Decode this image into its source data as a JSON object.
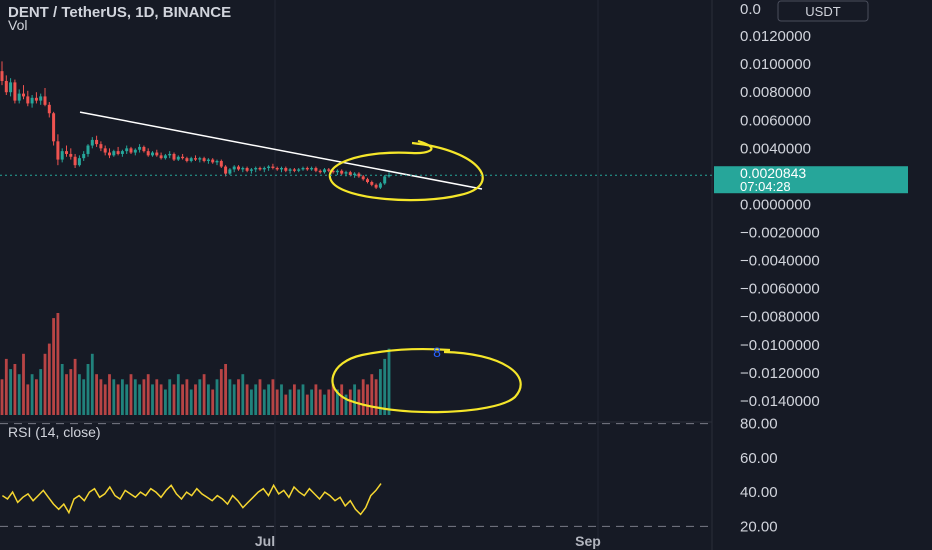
{
  "header": {
    "title": "DENT / TetherUS, 1D, BINANCE",
    "vol_label": "Vol",
    "currency_button": "USDT"
  },
  "rsi": {
    "label": "RSI (14, close)"
  },
  "last_price": {
    "value": "0.0020843",
    "countdown": "07:04:28"
  },
  "colors": {
    "background": "#161a25",
    "up": "#26a69a",
    "down": "#ef5350",
    "trendline": "#ffffff",
    "annotation": "#f5e62a",
    "rsi_line": "#f5d631",
    "price_badge": "#26a69a"
  },
  "annotation_marker": "8",
  "chart_data": {
    "type": "candlestick",
    "price_axis": {
      "ylim": [
        -0.0155,
        0.014
      ],
      "ticks": [
        "0.0120000",
        "0.0100000",
        "0.0080000",
        "0.0060000",
        "0.0040000",
        "0.0000000",
        "−0.0020000",
        "−0.0040000",
        "−0.0060000",
        "−0.0080000",
        "−0.0100000",
        "−0.0120000",
        "−0.0140000"
      ]
    },
    "rsi_axis": {
      "ylim": [
        15,
        85
      ],
      "ticks": [
        "80.00",
        "60.00",
        "40.00",
        "20.00"
      ],
      "bands": [
        80,
        20
      ]
    },
    "x_ticks": [
      {
        "label": "Jul",
        "index": 75
      },
      {
        "label": "Sep",
        "index": 170
      }
    ],
    "candles": [
      [
        0.0095,
        0.0102,
        0.0085,
        0.0088
      ],
      [
        0.0088,
        0.0092,
        0.0078,
        0.008
      ],
      [
        0.008,
        0.009,
        0.0077,
        0.0087
      ],
      [
        0.0087,
        0.0089,
        0.0072,
        0.0074
      ],
      [
        0.0074,
        0.0082,
        0.0072,
        0.0079
      ],
      [
        0.0079,
        0.0085,
        0.0075,
        0.0077
      ],
      [
        0.0077,
        0.0081,
        0.007,
        0.0072
      ],
      [
        0.0072,
        0.0078,
        0.0069,
        0.0076
      ],
      [
        0.0076,
        0.008,
        0.0072,
        0.0074
      ],
      [
        0.0074,
        0.0079,
        0.0071,
        0.0077
      ],
      [
        0.0077,
        0.0083,
        0.007,
        0.0071
      ],
      [
        0.0071,
        0.0073,
        0.0062,
        0.0065
      ],
      [
        0.0065,
        0.0066,
        0.0042,
        0.0045
      ],
      [
        0.0045,
        0.005,
        0.0028,
        0.0032
      ],
      [
        0.0032,
        0.004,
        0.003,
        0.0038
      ],
      [
        0.0038,
        0.0042,
        0.0034,
        0.0036
      ],
      [
        0.0036,
        0.004,
        0.0032,
        0.0034
      ],
      [
        0.0034,
        0.0036,
        0.0026,
        0.0028
      ],
      [
        0.0028,
        0.0035,
        0.0027,
        0.0033
      ],
      [
        0.0033,
        0.0038,
        0.0031,
        0.0036
      ],
      [
        0.0036,
        0.0043,
        0.0034,
        0.0042
      ],
      [
        0.0042,
        0.0048,
        0.004,
        0.0046
      ],
      [
        0.0046,
        0.0049,
        0.0041,
        0.0043
      ],
      [
        0.0043,
        0.0045,
        0.0038,
        0.004
      ],
      [
        0.004,
        0.0042,
        0.0035,
        0.0037
      ],
      [
        0.0037,
        0.004,
        0.0033,
        0.0035
      ],
      [
        0.0035,
        0.0039,
        0.0034,
        0.0038
      ],
      [
        0.0038,
        0.0041,
        0.0035,
        0.0036
      ],
      [
        0.0036,
        0.0039,
        0.0034,
        0.0038
      ],
      [
        0.0038,
        0.0042,
        0.0036,
        0.004
      ],
      [
        0.004,
        0.0041,
        0.0036,
        0.0037
      ],
      [
        0.0037,
        0.004,
        0.0035,
        0.0039
      ],
      [
        0.0039,
        0.0043,
        0.0037,
        0.0041
      ],
      [
        0.0041,
        0.0042,
        0.0037,
        0.0038
      ],
      [
        0.0038,
        0.004,
        0.0034,
        0.0035
      ],
      [
        0.0035,
        0.0038,
        0.0034,
        0.0037
      ],
      [
        0.0037,
        0.0039,
        0.0034,
        0.0035
      ],
      [
        0.0035,
        0.0037,
        0.0032,
        0.0033
      ],
      [
        0.0033,
        0.0036,
        0.0032,
        0.0035
      ],
      [
        0.0035,
        0.0038,
        0.0033,
        0.0036
      ],
      [
        0.0036,
        0.0037,
        0.0031,
        0.0032
      ],
      [
        0.0032,
        0.0035,
        0.0031,
        0.0034
      ],
      [
        0.0034,
        0.0036,
        0.0032,
        0.0033
      ],
      [
        0.0033,
        0.0034,
        0.003,
        0.0031
      ],
      [
        0.0031,
        0.0034,
        0.003,
        0.0033
      ],
      [
        0.0033,
        0.0035,
        0.0031,
        0.0032
      ],
      [
        0.0032,
        0.0034,
        0.003,
        0.0033
      ],
      [
        0.0033,
        0.0034,
        0.003,
        0.0031
      ],
      [
        0.0031,
        0.0033,
        0.0029,
        0.0032
      ],
      [
        0.0032,
        0.0033,
        0.0029,
        0.003
      ],
      [
        0.003,
        0.0032,
        0.0028,
        0.0031
      ],
      [
        0.0031,
        0.0032,
        0.0026,
        0.0027
      ],
      [
        0.0027,
        0.0028,
        0.002,
        0.0022
      ],
      [
        0.0022,
        0.0026,
        0.0021,
        0.0025
      ],
      [
        0.0025,
        0.0028,
        0.0023,
        0.0027
      ],
      [
        0.0027,
        0.0028,
        0.0024,
        0.0025
      ],
      [
        0.0025,
        0.0027,
        0.0023,
        0.0026
      ],
      [
        0.0026,
        0.0027,
        0.0023,
        0.0024
      ],
      [
        0.0024,
        0.0026,
        0.0022,
        0.0025
      ],
      [
        0.0025,
        0.0027,
        0.0023,
        0.0026
      ],
      [
        0.0026,
        0.0027,
        0.0024,
        0.0025
      ],
      [
        0.0025,
        0.0027,
        0.0023,
        0.0026
      ],
      [
        0.0026,
        0.0028,
        0.0024,
        0.0027
      ],
      [
        0.0027,
        0.0029,
        0.0025,
        0.0026
      ],
      [
        0.0026,
        0.0027,
        0.0024,
        0.0025
      ],
      [
        0.0025,
        0.0027,
        0.0023,
        0.0026
      ],
      [
        0.0026,
        0.0027,
        0.0023,
        0.0024
      ],
      [
        0.0024,
        0.0026,
        0.0022,
        0.0025
      ],
      [
        0.0025,
        0.0026,
        0.0023,
        0.0024
      ],
      [
        0.0024,
        0.0026,
        0.0023,
        0.0025
      ],
      [
        0.0025,
        0.0027,
        0.0024,
        0.0026
      ],
      [
        0.0026,
        0.0027,
        0.0024,
        0.0025
      ],
      [
        0.0025,
        0.0027,
        0.0024,
        0.0026
      ],
      [
        0.0026,
        0.0027,
        0.0023,
        0.0024
      ],
      [
        0.0024,
        0.0025,
        0.0022,
        0.0023
      ],
      [
        0.0023,
        0.0026,
        0.0022,
        0.0025
      ],
      [
        0.0025,
        0.0026,
        0.0023,
        0.0024
      ],
      [
        0.0024,
        0.0025,
        0.0022,
        0.0023
      ],
      [
        0.0023,
        0.0025,
        0.0021,
        0.0024
      ],
      [
        0.0024,
        0.0025,
        0.0021,
        0.0022
      ],
      [
        0.0022,
        0.0024,
        0.002,
        0.0023
      ],
      [
        0.0023,
        0.0024,
        0.002,
        0.0021
      ],
      [
        0.0021,
        0.0023,
        0.0019,
        0.0022
      ],
      [
        0.0022,
        0.0023,
        0.0019,
        0.002
      ],
      [
        0.002,
        0.0021,
        0.0017,
        0.0018
      ],
      [
        0.0018,
        0.0019,
        0.0015,
        0.0016
      ],
      [
        0.0016,
        0.0017,
        0.0013,
        0.0014
      ],
      [
        0.0014,
        0.0015,
        0.0011,
        0.0012
      ],
      [
        0.0012,
        0.0016,
        0.0011,
        0.0015
      ],
      [
        0.0015,
        0.0021,
        0.0014,
        0.002
      ],
      [
        0.002,
        0.0023,
        0.0019,
        0.0021
      ]
    ],
    "volume": [
      0.35,
      0.55,
      0.45,
      0.5,
      0.4,
      0.6,
      0.3,
      0.4,
      0.35,
      0.45,
      0.6,
      0.7,
      0.95,
      1.0,
      0.5,
      0.4,
      0.45,
      0.55,
      0.4,
      0.35,
      0.5,
      0.6,
      0.4,
      0.35,
      0.3,
      0.4,
      0.35,
      0.3,
      0.35,
      0.3,
      0.4,
      0.35,
      0.3,
      0.35,
      0.4,
      0.3,
      0.35,
      0.3,
      0.25,
      0.35,
      0.3,
      0.4,
      0.3,
      0.35,
      0.25,
      0.3,
      0.35,
      0.4,
      0.3,
      0.25,
      0.35,
      0.45,
      0.5,
      0.35,
      0.3,
      0.35,
      0.4,
      0.3,
      0.25,
      0.3,
      0.35,
      0.25,
      0.3,
      0.35,
      0.25,
      0.3,
      0.2,
      0.25,
      0.3,
      0.25,
      0.3,
      0.2,
      0.25,
      0.3,
      0.25,
      0.2,
      0.25,
      0.3,
      0.25,
      0.3,
      0.2,
      0.25,
      0.3,
      0.25,
      0.35,
      0.3,
      0.4,
      0.35,
      0.45,
      0.55,
      0.65
    ],
    "volume_scale_max": 100,
    "rsi_values": [
      38,
      36,
      40,
      34,
      37,
      39,
      35,
      38,
      41,
      37,
      33,
      30,
      33,
      28,
      36,
      38,
      35,
      40,
      42,
      37,
      39,
      43,
      38,
      36,
      41,
      39,
      37,
      40,
      38,
      42,
      40,
      37,
      41,
      44,
      39,
      36,
      40,
      38,
      42,
      39,
      37,
      35,
      38,
      36,
      33,
      38,
      35,
      31,
      34,
      37,
      40,
      42,
      38,
      44,
      39,
      41,
      37,
      43,
      40,
      38,
      42,
      39,
      36,
      40,
      38,
      35,
      37,
      32,
      35,
      30,
      27,
      31,
      38,
      41,
      45
    ],
    "trendline": {
      "from": {
        "index": 20,
        "price": 0.0048
      },
      "to": {
        "index": 123,
        "price": 0.0012
      }
    }
  }
}
